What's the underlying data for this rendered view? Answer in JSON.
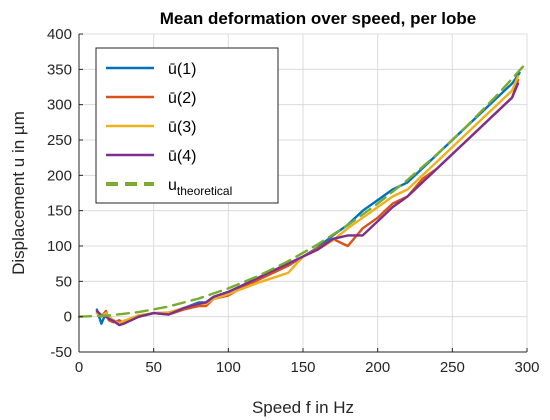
{
  "chart_data": {
    "type": "line",
    "title": "Mean deformation over speed, per lobe",
    "xlabel": "Speed f in Hz",
    "ylabel": "Displacement u in µm",
    "xlim": [
      0,
      300
    ],
    "ylim": [
      -50,
      400
    ],
    "xticks": [
      0,
      50,
      100,
      150,
      200,
      250,
      300
    ],
    "yticks": [
      -50,
      0,
      50,
      100,
      150,
      200,
      250,
      300,
      350,
      400
    ],
    "grid": true,
    "legend_position": "top-left",
    "series": [
      {
        "name": "ū(1)",
        "color": "#0072BD",
        "dashed": false,
        "x": [
          12,
          15,
          18,
          20,
          23,
          27,
          30,
          35,
          40,
          50,
          60,
          70,
          80,
          85,
          90,
          100,
          110,
          120,
          130,
          140,
          150,
          160,
          170,
          180,
          190,
          200,
          210,
          220,
          230,
          240,
          250,
          260,
          270,
          280,
          290,
          295
        ],
        "y": [
          10,
          -10,
          5,
          -5,
          -5,
          -10,
          -8,
          -5,
          0,
          5,
          5,
          12,
          20,
          20,
          28,
          35,
          45,
          55,
          65,
          75,
          85,
          98,
          115,
          130,
          150,
          165,
          180,
          190,
          210,
          230,
          250,
          270,
          290,
          310,
          330,
          345
        ]
      },
      {
        "name": "ū(2)",
        "color": "#D95319",
        "dashed": false,
        "x": [
          12,
          15,
          18,
          20,
          23,
          27,
          30,
          35,
          40,
          50,
          60,
          70,
          80,
          85,
          90,
          100,
          110,
          120,
          130,
          140,
          150,
          160,
          170,
          175,
          180,
          190,
          200,
          210,
          220,
          230,
          240,
          250,
          260,
          270,
          280,
          290,
          294
        ],
        "y": [
          5,
          0,
          8,
          -5,
          -8,
          -5,
          -10,
          -3,
          0,
          5,
          3,
          10,
          15,
          15,
          25,
          30,
          42,
          52,
          62,
          72,
          85,
          97,
          110,
          105,
          100,
          125,
          140,
          160,
          170,
          195,
          210,
          230,
          250,
          270,
          290,
          310,
          335
        ]
      },
      {
        "name": "ū(3)",
        "color": "#EDB120",
        "dashed": false,
        "x": [
          12,
          15,
          18,
          20,
          23,
          27,
          30,
          35,
          40,
          50,
          60,
          70,
          80,
          85,
          90,
          100,
          110,
          120,
          130,
          140,
          150,
          160,
          170,
          180,
          190,
          200,
          210,
          220,
          230,
          240,
          250,
          260,
          270,
          280,
          290,
          294
        ],
        "y": [
          5,
          0,
          5,
          0,
          -5,
          -10,
          -6,
          -2,
          2,
          5,
          6,
          12,
          18,
          18,
          25,
          32,
          40,
          48,
          55,
          62,
          85,
          95,
          108,
          125,
          140,
          155,
          170,
          180,
          200,
          220,
          240,
          260,
          280,
          300,
          320,
          340
        ]
      },
      {
        "name": "ū(4)",
        "color": "#7E2F8E",
        "dashed": false,
        "x": [
          12,
          15,
          18,
          20,
          23,
          27,
          30,
          35,
          40,
          50,
          60,
          70,
          80,
          85,
          90,
          100,
          110,
          120,
          130,
          140,
          150,
          160,
          170,
          180,
          190,
          200,
          210,
          220,
          230,
          240,
          250,
          260,
          270,
          280,
          290,
          294
        ],
        "y": [
          8,
          2,
          0,
          -3,
          -6,
          -12,
          -10,
          -5,
          0,
          5,
          3,
          12,
          18,
          20,
          28,
          35,
          45,
          55,
          65,
          75,
          85,
          95,
          110,
          115,
          115,
          135,
          155,
          170,
          190,
          210,
          230,
          250,
          270,
          290,
          310,
          330
        ]
      },
      {
        "name": "u",
        "name_subscript": "theoretical",
        "color": "#77AC30",
        "dashed": true,
        "x": [
          0,
          20,
          40,
          60,
          80,
          100,
          120,
          140,
          160,
          180,
          200,
          220,
          240,
          260,
          280,
          300
        ],
        "y": [
          0,
          1.6,
          6.4,
          14.4,
          25.6,
          40,
          57.6,
          78.4,
          102.4,
          129.6,
          160,
          193.6,
          230.4,
          270.4,
          313.6,
          360
        ]
      }
    ]
  }
}
